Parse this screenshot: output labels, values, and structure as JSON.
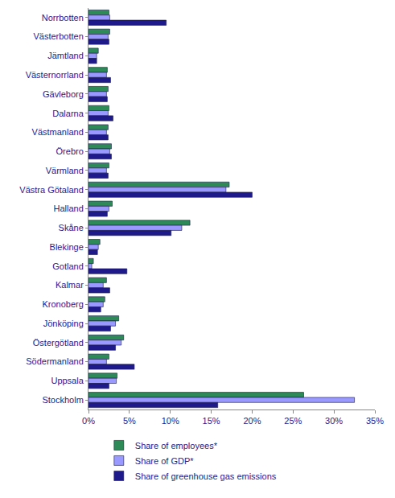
{
  "chart_data": {
    "type": "bar",
    "orientation": "horizontal",
    "categories": [
      "Norrbotten",
      "Västerbotten",
      "Jämtland",
      "Västernorrland",
      "Gävleborg",
      "Dalarna",
      "Västmanland",
      "Örebro",
      "Värmland",
      "Västra Götaland",
      "Halland",
      "Skåne",
      "Blekinge",
      "Gotland",
      "Kalmar",
      "Kronoberg",
      "Jönköping",
      "Östergötland",
      "Södermanland",
      "Uppsala",
      "Stockholm"
    ],
    "series": [
      {
        "name": "Share of employees*",
        "color": "#2e8b57",
        "values": [
          2.5,
          2.6,
          1.2,
          2.3,
          2.4,
          2.5,
          2.4,
          2.8,
          2.5,
          17.2,
          2.9,
          12.4,
          1.4,
          0.6,
          2.2,
          2.0,
          3.7,
          4.3,
          2.5,
          3.5,
          26.3
        ]
      },
      {
        "name": "Share of GDP*",
        "color": "#9999ff",
        "values": [
          2.6,
          2.4,
          1.0,
          2.2,
          2.2,
          2.4,
          2.2,
          2.6,
          2.2,
          16.8,
          2.5,
          11.4,
          1.2,
          0.4,
          1.8,
          1.8,
          3.3,
          4.0,
          2.2,
          3.4,
          32.5
        ]
      },
      {
        "name": "Share of greenhouse gas emissions",
        "color": "#1f1a8c",
        "values": [
          9.5,
          2.5,
          1.0,
          2.7,
          2.3,
          3.0,
          2.4,
          2.8,
          2.4,
          20.0,
          2.3,
          10.1,
          1.1,
          4.7,
          2.6,
          1.5,
          2.7,
          3.3,
          5.6,
          2.5,
          15.8
        ]
      }
    ],
    "xlim": [
      0,
      35
    ],
    "xticks": [
      {
        "value": 0,
        "label": "0%"
      },
      {
        "value": 5,
        "label": "5%"
      },
      {
        "value": 10,
        "label": "10%"
      },
      {
        "value": 15,
        "label": "15%"
      },
      {
        "value": 20,
        "label": "20%"
      },
      {
        "value": 25,
        "label": "25%"
      },
      {
        "value": 30,
        "label": "30%"
      },
      {
        "value": 35,
        "label": "35%"
      }
    ],
    "grid": false,
    "legend": "bottom"
  }
}
